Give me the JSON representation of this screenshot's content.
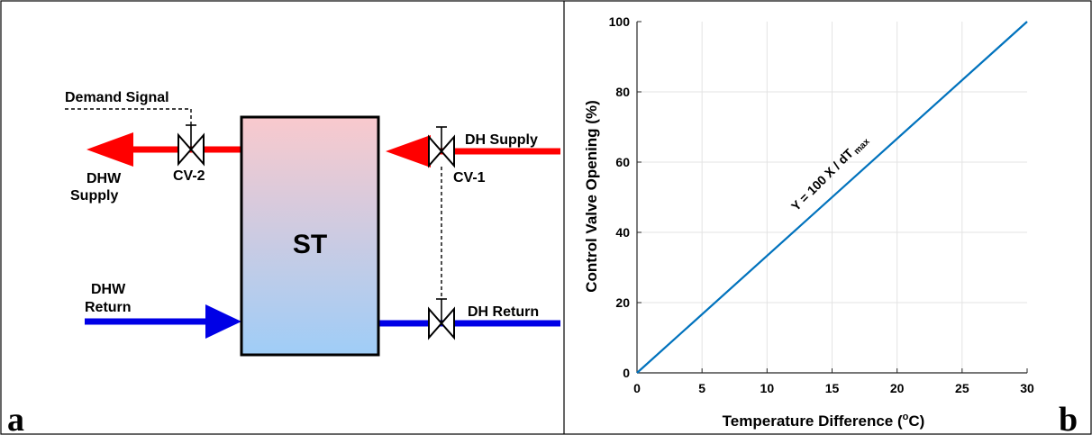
{
  "panel_a": {
    "letter": "a",
    "tank_label": "ST",
    "demand_signal": "Demand Signal",
    "dhw_supply_line1": "DHW",
    "dhw_supply_line2": "Supply",
    "dhw_return_line1": "DHW",
    "dhw_return_line2": "Return",
    "cv2_label": "CV-2",
    "cv1_label": "CV-1",
    "dh_supply": "DH Supply",
    "dh_return": "DH Return",
    "colors": {
      "supply": "#ff0000",
      "return": "#0000e6",
      "tank_top": "#f9c9cd",
      "tank_bottom": "#9fcdf7"
    }
  },
  "panel_b": {
    "letter": "b",
    "equation_main": "Y = 100 X / dT",
    "equation_sub": "max",
    "xlabel_main": "Temperature Difference (",
    "xlabel_sup": "o",
    "xlabel_end": "C)",
    "ylabel": "Control Valve Opening (%)"
  },
  "chart_data": {
    "type": "line",
    "xlim": [
      0,
      30
    ],
    "ylim": [
      0,
      100
    ],
    "x_ticks": [
      0,
      5,
      10,
      15,
      20,
      25,
      30
    ],
    "y_ticks": [
      0,
      20,
      40,
      60,
      80,
      100
    ],
    "grid": true,
    "line_color": "#0072bd",
    "series": [
      {
        "x": [
          0,
          30
        ],
        "y": [
          0,
          100
        ]
      }
    ]
  }
}
